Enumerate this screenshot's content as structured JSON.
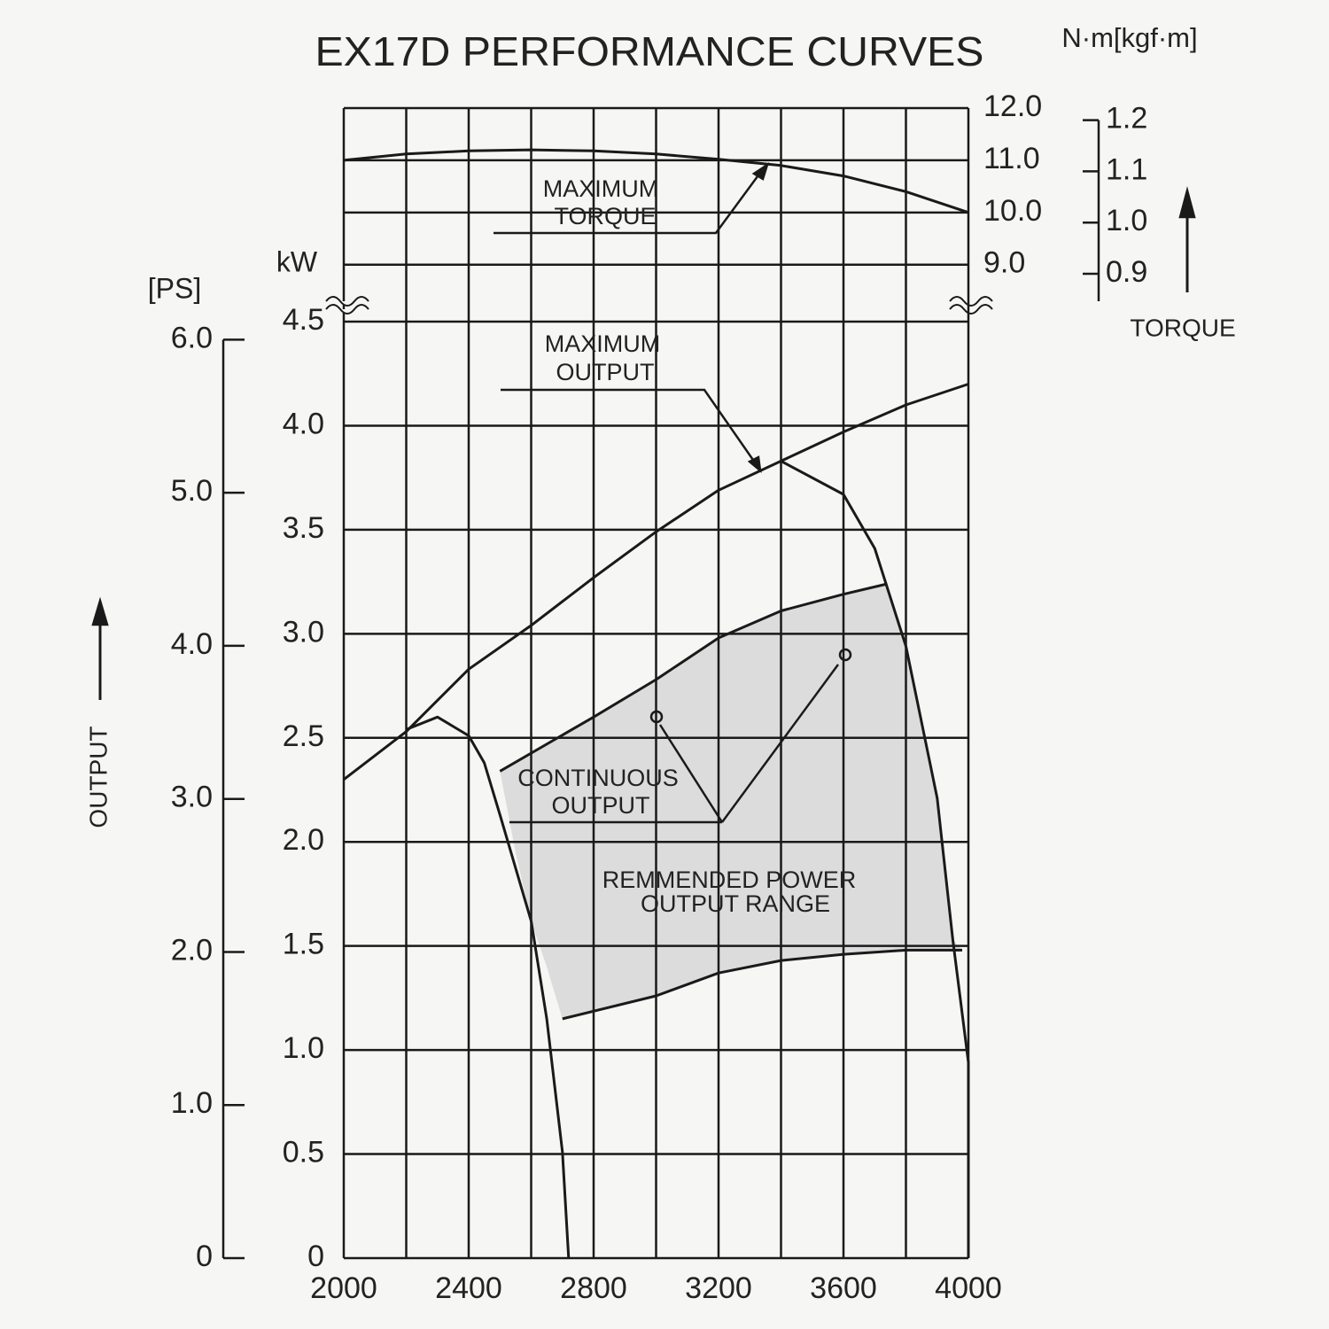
{
  "chart_data": [
    {
      "type": "line",
      "title": "EX17D PERFORMANCE CURVES",
      "unit_label": "N·m[kgf·m]",
      "quantity_label": "TORQUE",
      "xlim": [
        2000,
        4000
      ],
      "xgrid": [
        2000,
        2200,
        2400,
        2600,
        2800,
        3000,
        3200,
        3400,
        3600,
        3800,
        4000
      ],
      "ylim": [
        8.3,
        12.0
      ],
      "yticks": [
        {
          "value": 9,
          "label": "9.0"
        },
        {
          "value": 10,
          "label": "10.0"
        },
        {
          "value": 11,
          "label": "11.0"
        },
        {
          "value": 12,
          "label": "12.0"
        }
      ],
      "y2lim": [
        0.8463,
        1.2236
      ],
      "y2ticks": [
        {
          "value": 0.9,
          "label": "0.9"
        },
        {
          "value": 1,
          "label": "1.0"
        },
        {
          "value": 1.1,
          "label": "1.1"
        },
        {
          "value": 1.2,
          "label": "1.2"
        }
      ],
      "grid": true,
      "series": [
        {
          "label": [
            "MAXIMUM",
            "TORQUE"
          ],
          "style": "line",
          "color": "#1a1a1a",
          "x": [
            2000,
            2200,
            2400,
            2600,
            2800,
            3000,
            3200,
            3400,
            3600,
            3800,
            4000
          ],
          "values": [
            11.0,
            11.12,
            11.18,
            11.2,
            11.18,
            11.12,
            11.02,
            10.9,
            10.7,
            10.4,
            10.0
          ]
        }
      ]
    },
    {
      "type": "line",
      "unit_label": "kW",
      "y2_unit_label": "[PS]",
      "quantity_label": "OUTPUT",
      "xlim": [
        2000,
        4000
      ],
      "xticks": [
        2000,
        2400,
        2800,
        3200,
        3600,
        4000
      ],
      "xgrid": [
        2000,
        2200,
        2400,
        2600,
        2800,
        3000,
        3200,
        3400,
        3600,
        3800,
        4000
      ],
      "ylim": [
        0,
        4.5
      ],
      "yticks": [
        0,
        0.5,
        {
          "value": 1,
          "label": "1.0"
        },
        1.5,
        {
          "value": 2,
          "label": "2.0"
        },
        2.5,
        {
          "value": 3,
          "label": "3.0"
        },
        3.5,
        {
          "value": 4,
          "label": "4.0"
        },
        4.5
      ],
      "y2lim": [
        0,
        6.118
      ],
      "y2ticks": [
        0,
        {
          "value": 1,
          "label": "1.0"
        },
        {
          "value": 2,
          "label": "2.0"
        },
        {
          "value": 3,
          "label": "3.0"
        },
        {
          "value": 4,
          "label": "4.0"
        },
        {
          "value": 5,
          "label": "5.0"
        },
        {
          "value": 6,
          "label": "6.0"
        }
      ],
      "grid": true,
      "series": [
        {
          "label": [
            "REMMENDED POWER",
            "OUTPUT RANGE"
          ],
          "style": "area",
          "color": "#dcdcdc",
          "x": [
            2500,
            2800,
            3000,
            3200,
            3400,
            3600,
            3740,
            3800,
            3900,
            3950,
            3980,
            3800,
            3600,
            3400,
            3200,
            3000,
            2700,
            2650,
            2600,
            2550
          ],
          "values": [
            2.34,
            2.6,
            2.78,
            2.98,
            3.11,
            3.19,
            3.24,
            2.94,
            2.21,
            1.53,
            1.48,
            1.48,
            1.46,
            1.43,
            1.37,
            1.26,
            1.15,
            1.4,
            1.62,
            1.95
          ]
        },
        {
          "label": [
            "MAXIMUM",
            "OUTPUT"
          ],
          "style": "line",
          "color": "#1a1a1a",
          "x": [
            2000,
            2200,
            2400,
            2600,
            2800,
            3000,
            3200,
            3400,
            3600,
            3800,
            4000
          ],
          "values": [
            2.3,
            2.53,
            2.83,
            3.04,
            3.27,
            3.49,
            3.69,
            3.83,
            3.97,
            4.1,
            4.2
          ]
        },
        {
          "label": [
            "CONTINUOUS",
            "OUTPUT"
          ],
          "style": "line",
          "color": "#1a1a1a",
          "x": [
            2500,
            2800,
            3000,
            3200,
            3400,
            3600,
            3740
          ],
          "values": [
            2.34,
            2.6,
            2.78,
            2.98,
            3.11,
            3.19,
            3.24
          ]
        },
        {
          "style": "line",
          "color": "#1a1a1a",
          "x": [
            2200,
            2300,
            2400,
            2450,
            2500,
            2600,
            2650,
            2700,
            2720
          ],
          "values": [
            2.54,
            2.6,
            2.51,
            2.38,
            2.13,
            1.62,
            1.15,
            0.51,
            0
          ]
        },
        {
          "style": "line",
          "color": "#1a1a1a",
          "x": [
            3400,
            3600,
            3700,
            3800,
            3900,
            3950,
            4000,
            4000
          ],
          "values": [
            3.83,
            3.67,
            3.41,
            2.94,
            2.21,
            1.53,
            0.94,
            0
          ]
        },
        {
          "style": "line",
          "color": "#1a1a1a",
          "x": [
            2700,
            3000,
            3200,
            3400,
            3600,
            3800,
            3980
          ],
          "values": [
            1.15,
            1.26,
            1.37,
            1.43,
            1.46,
            1.48,
            1.48
          ]
        }
      ]
    }
  ]
}
